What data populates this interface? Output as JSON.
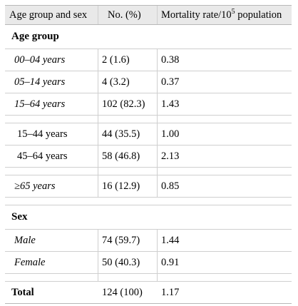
{
  "header": {
    "col1": "Age group and sex",
    "col2": "No. (%)",
    "col3_main": "Mortality rate/10",
    "col3_sup": "5",
    "col3_tail": " population"
  },
  "sections": {
    "age": "Age group",
    "sex": "Sex"
  },
  "rows": {
    "age_00_04": {
      "label": "00–04 years",
      "no": "2 (1.6)",
      "rate": "0.38"
    },
    "age_05_14": {
      "label": "05–14 years",
      "no": "4 (3.2)",
      "rate": "0.37"
    },
    "age_15_64": {
      "label": "15–64 years",
      "no": "102 (82.3)",
      "rate": "1.43"
    },
    "age_15_44": {
      "label": "15–44 years",
      "no": "44 (35.5)",
      "rate": "1.00"
    },
    "age_45_64": {
      "label": "45–64 years",
      "no": "58 (46.8)",
      "rate": "2.13"
    },
    "age_65": {
      "label": "≥65 years",
      "no": "16 (12.9)",
      "rate": "0.85"
    },
    "male": {
      "label": "Male",
      "no": "74 (59.7)",
      "rate": "1.44"
    },
    "female": {
      "label": "Female",
      "no": "50 (40.3)",
      "rate": "0.91"
    },
    "total": {
      "label": "Total",
      "no": "124 (100)",
      "rate": "1.17"
    }
  }
}
